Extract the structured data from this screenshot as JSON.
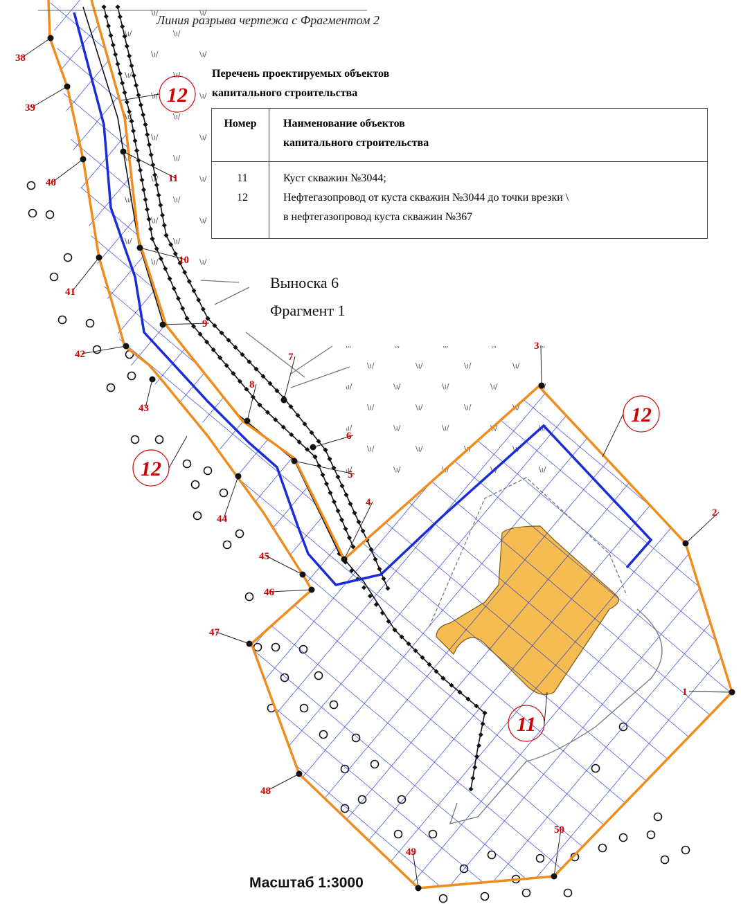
{
  "break_line_text": "Линия разрыва чертежа с Фрагментом 2",
  "legend": {
    "title_line1": "Перечень проектируемых объектов",
    "title_line2": "капитального строительства",
    "header_number": "Номер",
    "header_name_line1": "Наименование объектов",
    "header_name_line2": "капитального строительства",
    "rows": [
      {
        "number": "11",
        "name": "Куст скважин №3044;"
      },
      {
        "number": "12",
        "name_line1": "Нефтегазопровод от куста скважин №3044 до точки врезки \\",
        "name_line2": "в нефтегазопровод куста скважин №367"
      }
    ]
  },
  "callout": {
    "line1": "Выноска 6",
    "line2": "Фрагмент 1"
  },
  "scale": "Масштаб 1:3000",
  "object_callouts": [
    "12",
    "12",
    "12",
    "11"
  ],
  "boundary_points": [
    "1",
    "2",
    "3",
    "4",
    "5",
    "6",
    "7",
    "8",
    "9",
    "10",
    "11",
    "38",
    "39",
    "40",
    "41",
    "42",
    "43",
    "44",
    "45",
    "46",
    "47",
    "48",
    "49",
    "50"
  ],
  "colors": {
    "boundary": "#f08c1e",
    "grid": "#1a2cd6",
    "pipeline": "#1a2cd6",
    "pad": "#f5bc52",
    "labels": "#d00000"
  }
}
